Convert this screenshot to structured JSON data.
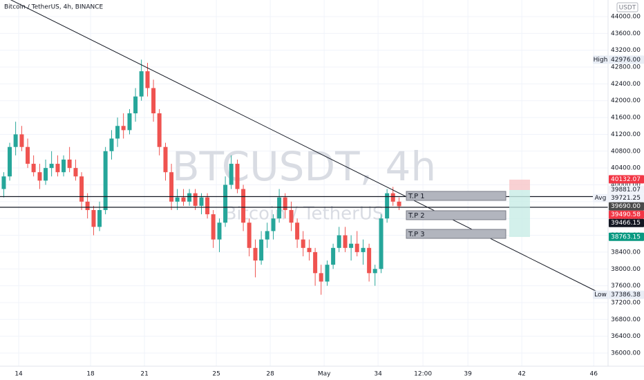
{
  "chart_data": {
    "type": "candlestick",
    "title": "Bitcoin / TetherUS, 4h, BINANCE",
    "watermark": "BTCUSDT, 4h",
    "watermark_subtitle": "Bitcoin / TetherUS",
    "currency": "USDT",
    "up_color": "#26a69a",
    "down_color": "#ef5350",
    "grid": true,
    "x": [
      13.17,
      13.5,
      13.83,
      14.17,
      14.5,
      14.83,
      15.17,
      15.5,
      15.83,
      16.17,
      16.5,
      16.83,
      17.17,
      17.5,
      17.83,
      18.17,
      18.5,
      18.83,
      19.17,
      19.5,
      19.83,
      20.17,
      20.5,
      20.83,
      21.17,
      21.5,
      21.83,
      22.17,
      22.5,
      22.83,
      23.17,
      23.5,
      23.83,
      24.17,
      24.5,
      24.83,
      25.17,
      25.5,
      25.83,
      26.17,
      26.5,
      26.83,
      27.17,
      27.5,
      27.83,
      28.17,
      28.5,
      28.83,
      29.17,
      29.5,
      29.83,
      30.17,
      30.5,
      30.83,
      31.17,
      31.5,
      31.83,
      32.17,
      32.5,
      32.83,
      33.17,
      33.5,
      33.83,
      34.17,
      34.5,
      34.83,
      35.17
    ],
    "open": [
      39900,
      40200,
      40900,
      41200,
      40900,
      40500,
      40300,
      40100,
      40400,
      40500,
      40300,
      40600,
      40400,
      40200,
      39600,
      39400,
      39000,
      39400,
      40800,
      41100,
      41400,
      41300,
      41700,
      42100,
      42700,
      42300,
      41700,
      40900,
      40300,
      39600,
      39700,
      39600,
      39800,
      39500,
      39700,
      39300,
      38700,
      39100,
      40000,
      40500,
      39900,
      39100,
      38500,
      38200,
      38700,
      38900,
      39200,
      39700,
      39400,
      39100,
      38700,
      38500,
      38400,
      37900,
      37700,
      38100,
      38500,
      38800,
      38500,
      38600,
      38400,
      38500,
      37900,
      38000,
      39200,
      39800,
      39600
    ],
    "high": [
      40300,
      41000,
      41500,
      41400,
      41100,
      40700,
      40500,
      40600,
      40800,
      40700,
      40700,
      40900,
      40600,
      40300,
      39800,
      39500,
      39600,
      40900,
      41300,
      41600,
      41700,
      41800,
      42300,
      42976,
      42900,
      42500,
      41800,
      41000,
      40500,
      39900,
      39900,
      39900,
      39900,
      39800,
      39800,
      39400,
      39200,
      40200,
      40700,
      40600,
      40000,
      39200,
      38700,
      38900,
      39100,
      39300,
      39900,
      39800,
      39600,
      39200,
      38900,
      38700,
      38500,
      38100,
      38200,
      38600,
      39000,
      39000,
      38800,
      38900,
      38700,
      38600,
      38100,
      39300,
      39900,
      39950,
      39700
    ],
    "low": [
      39700,
      40100,
      40700,
      40800,
      40400,
      40200,
      39900,
      40000,
      40200,
      40200,
      40200,
      40300,
      40100,
      39400,
      39200,
      38800,
      38900,
      39300,
      40600,
      40900,
      41100,
      41200,
      41500,
      42000,
      42100,
      41500,
      40700,
      40100,
      39400,
      39400,
      39500,
      39500,
      39400,
      39300,
      39200,
      38500,
      38400,
      39000,
      39900,
      39800,
      38900,
      38300,
      37800,
      38100,
      38500,
      38700,
      39100,
      39200,
      38900,
      38500,
      38300,
      38200,
      37600,
      37386.38,
      37600,
      38000,
      38400,
      38400,
      38200,
      38300,
      38100,
      37700,
      37600,
      37900,
      39100,
      39500,
      39400
    ],
    "close": [
      40200,
      40900,
      41200,
      40900,
      40500,
      40300,
      40100,
      40400,
      40500,
      40300,
      40600,
      40400,
      40200,
      39600,
      39400,
      39000,
      39400,
      40800,
      41100,
      41400,
      41300,
      41700,
      42100,
      42700,
      42300,
      41700,
      40900,
      40300,
      39600,
      39700,
      39600,
      39800,
      39500,
      39700,
      39300,
      38700,
      39100,
      40000,
      40500,
      39900,
      39100,
      38500,
      38200,
      38700,
      38900,
      39200,
      39700,
      39400,
      39100,
      38700,
      38500,
      38400,
      37900,
      37700,
      38100,
      38500,
      38800,
      38500,
      38600,
      38400,
      38500,
      37900,
      38000,
      39200,
      39800,
      39600,
      39490.58
    ],
    "xlim": [
      12.96,
      46.8
    ],
    "xticks": [
      14,
      18,
      21,
      25,
      28,
      {
        "value": 31,
        "label": "May"
      },
      34,
      {
        "value": 36.5,
        "label": "12:00"
      },
      39,
      42,
      46
    ],
    "ylim": [
      35688,
      44394
    ],
    "yticks": [
      {
        "value": 36000,
        "label": "36000.00"
      },
      {
        "value": 36400,
        "label": "36400.00"
      },
      {
        "value": 36800,
        "label": "36800.00"
      },
      {
        "value": 37200,
        "label": "37200.00"
      },
      {
        "value": 37600,
        "label": "37600.00"
      },
      {
        "value": 38000,
        "label": "38000.00"
      },
      {
        "value": 38400,
        "label": "38400.00"
      },
      {
        "value": 38800,
        "label": "38800.00"
      },
      {
        "value": 39200,
        "label": "39200.00"
      },
      {
        "value": 39600,
        "label": "39600.00"
      },
      {
        "value": 40000,
        "label": "40000.00"
      },
      {
        "value": 40400,
        "label": "40400.00"
      },
      {
        "value": 40800,
        "label": "40800.00"
      },
      {
        "value": 41200,
        "label": "41200.00"
      },
      {
        "value": 41600,
        "label": "41600.00"
      },
      {
        "value": 42000,
        "label": "42000.00"
      },
      {
        "value": 42400,
        "label": "42400.00"
      },
      {
        "value": 42800,
        "label": "42800.00"
      },
      {
        "value": 43200,
        "label": "43200.00"
      },
      {
        "value": 43600,
        "label": "43600.00"
      },
      {
        "value": 44000,
        "label": "44000.00"
      }
    ],
    "price_markers": [
      {
        "name": "High",
        "value": 42976,
        "label": "42976.00",
        "color": "#e8edf5",
        "text_color": "#131722"
      },
      {
        "value": 40132.07,
        "color": "#f23645",
        "text_color": "#ffffff"
      },
      {
        "value": 39881.07,
        "color": "#f0f3fa",
        "text_color": "#131722"
      },
      {
        "name": "Avg",
        "value": 39721.25,
        "color": "#f0f3fa",
        "text_color": "#131722"
      },
      {
        "value": 39690,
        "label": "39690.00",
        "color": "#4a4a4a",
        "text_color": "#ffffff"
      },
      {
        "value": 39490.58,
        "color": "#f23645",
        "text_color": "#ffffff"
      },
      {
        "value": 39466.15,
        "color": "#131722",
        "text_color": "#ffffff"
      },
      {
        "value": 38763.15,
        "color": "#089981",
        "text_color": "#ffffff"
      },
      {
        "name": "Low",
        "value": 37386.38,
        "color": "#e8edf5",
        "text_color": "#131722"
      }
    ],
    "horizontal_lines": [
      39721.25,
      39466.15
    ],
    "targets": [
      "T.P 1",
      "T.P 2",
      "T.P 3"
    ]
  }
}
